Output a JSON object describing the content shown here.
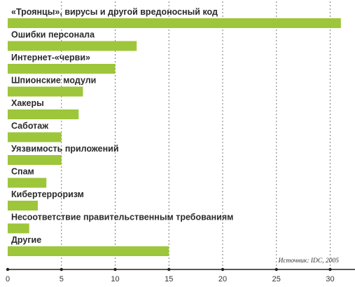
{
  "chart_data": {
    "type": "bar",
    "orientation": "horizontal",
    "categories": [
      "«Троянцы», вирусы и другой вредоносный код",
      "Ошибки персонала",
      "Интернет-«черви»",
      "Шпионские модули",
      "Хакеры",
      "Саботаж",
      "Уязвимость приложений",
      "Спам",
      "Кибертерроризм",
      "Несоответствие правительственным требованиям",
      "Другие"
    ],
    "values": [
      31.0,
      12.0,
      10.0,
      7.0,
      6.6,
      5.0,
      5.0,
      3.6,
      2.8,
      2.0,
      15.0
    ],
    "xlim": [
      0,
      31
    ],
    "xticks": [
      0,
      5,
      10,
      15,
      20,
      25,
      30
    ],
    "grid": "vertical dashed",
    "bar_color": "#9dc63b",
    "annotation": "Источник: IDC, 2005"
  }
}
